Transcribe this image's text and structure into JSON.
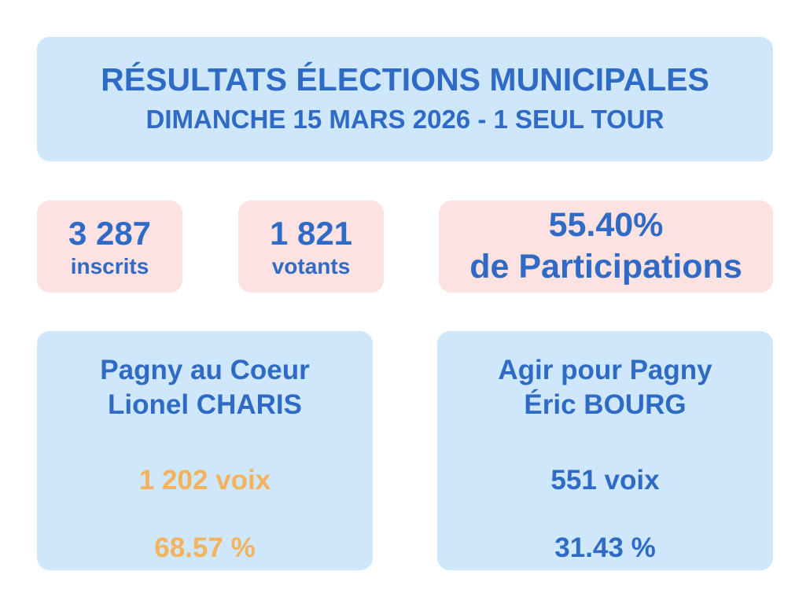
{
  "header": {
    "title": "RÉSULTATS ÉLECTIONS MUNICIPALES",
    "subtitle": "DIMANCHE 15 MARS 2026 - 1 SEUL TOUR"
  },
  "stats": {
    "inscrits": {
      "value": "3 287",
      "label": "inscrits"
    },
    "votants": {
      "value": "1 821",
      "label": "votants"
    },
    "participation": {
      "value": "55.40%",
      "label": "de Participations"
    }
  },
  "lists": [
    {
      "name": "Pagny au Coeur",
      "head": "Lionel CHARIS",
      "votes": "1 202 voix",
      "percent": "68.57 %",
      "highlight_color": "#f4b25c"
    },
    {
      "name": "Agir pour Pagny",
      "head": "Éric BOURG",
      "votes": "551 voix",
      "percent": "31.43 %",
      "highlight_color": "#2f6bc6"
    }
  ],
  "colors": {
    "primary_text": "#2f6bc6",
    "card_blue": "#cfe7fb",
    "card_pink": "#fde2e2",
    "winner": "#f4b25c"
  }
}
